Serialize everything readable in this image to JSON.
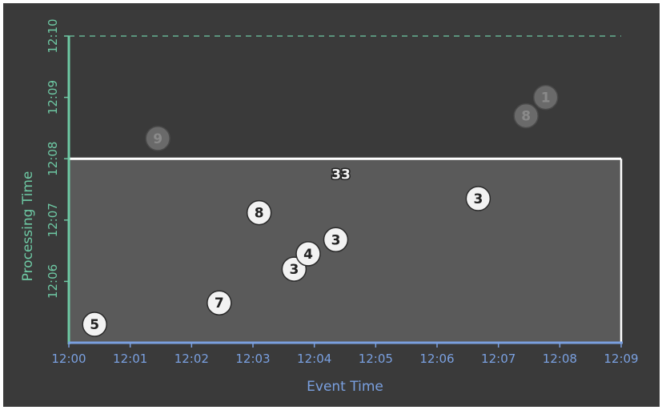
{
  "colors": {
    "background": "#3a3a3a",
    "plot_fill": "#5a5a5a",
    "x_axis": "#7aa0e0",
    "y_axis": "#6ec9a4",
    "window_top": "#ffffff",
    "point_active": "#f2f2f2",
    "point_late": "#6a6a6a",
    "text_dark": "#222222",
    "text_late": "#8a8a8a"
  },
  "chart_data": {
    "type": "scatter",
    "xlabel": "Event Time",
    "ylabel": "Processing Time",
    "x_ticks": [
      "12:00",
      "12:01",
      "12:02",
      "12:03",
      "12:04",
      "12:05",
      "12:06",
      "12:07",
      "12:08",
      "12:09"
    ],
    "y_ticks": [
      "12:06",
      "12:07",
      "12:08",
      "12:09",
      "12:10"
    ],
    "x_range_min": [
      0,
      9
    ],
    "y_range_min": [
      5,
      10
    ],
    "window_processing_time_min": 8,
    "watermark_processing_time_min": 10,
    "window_sum_label": "33",
    "window_sum_position_min": {
      "x": 4.5,
      "y": 7.75
    },
    "points": [
      {
        "label": "5",
        "x": 0.42,
        "y": 5.3,
        "state": "active"
      },
      {
        "label": "7",
        "x": 2.45,
        "y": 5.65,
        "state": "active"
      },
      {
        "label": "8",
        "x": 3.1,
        "y": 7.12,
        "state": "active"
      },
      {
        "label": "3",
        "x": 3.67,
        "y": 6.2,
        "state": "active"
      },
      {
        "label": "4",
        "x": 3.9,
        "y": 6.45,
        "state": "active"
      },
      {
        "label": "3",
        "x": 4.35,
        "y": 6.68,
        "state": "active"
      },
      {
        "label": "3",
        "x": 6.67,
        "y": 7.35,
        "state": "active"
      },
      {
        "label": "9",
        "x": 1.45,
        "y": 8.33,
        "state": "late"
      },
      {
        "label": "8",
        "x": 7.45,
        "y": 8.7,
        "state": "late"
      },
      {
        "label": "1",
        "x": 7.77,
        "y": 9.0,
        "state": "late"
      }
    ]
  }
}
